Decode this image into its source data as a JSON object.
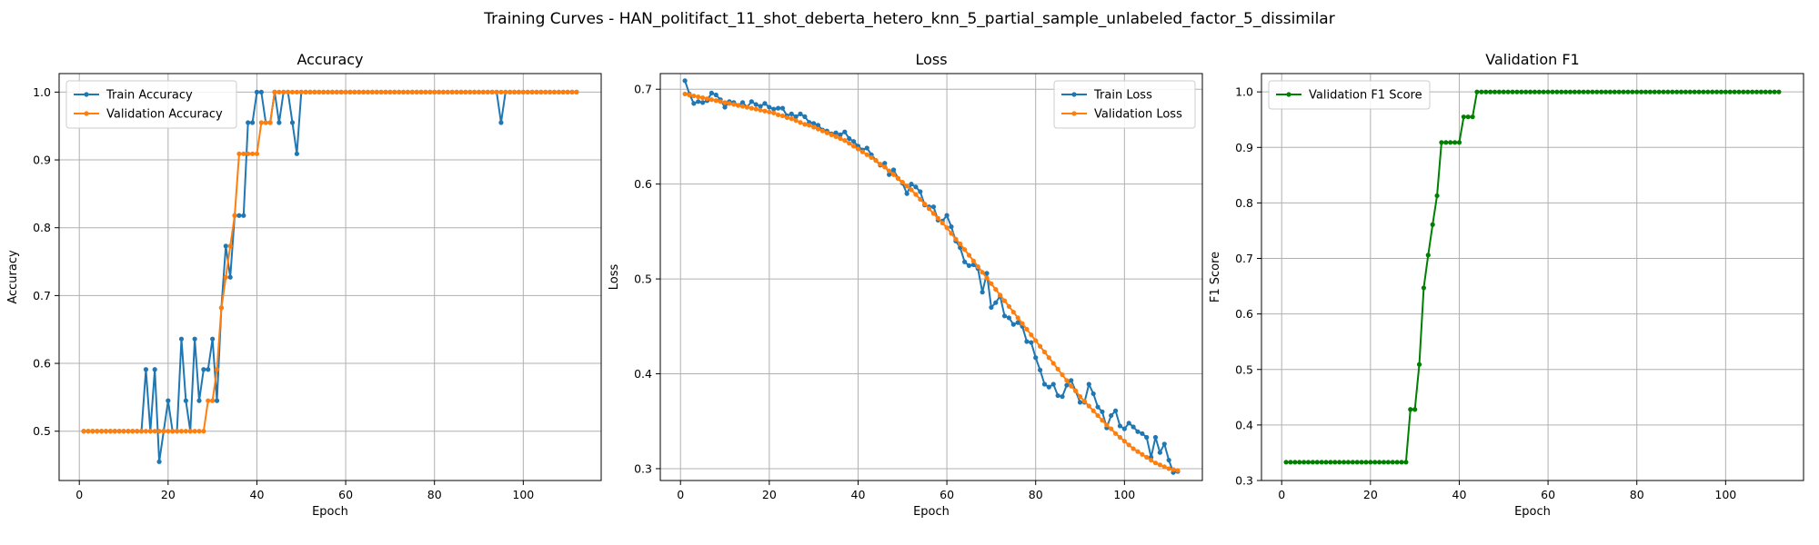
{
  "figure": {
    "title": "Training Curves - HAN_politifact_11_shot_deberta_hetero_knn_5_partial_sample_unlabeled_factor_5_dissimilar"
  },
  "colors": {
    "train": "#1f77b4",
    "validation": "#ff7f0e",
    "f1": "#008000",
    "grid": "#b0b0b0"
  },
  "chart_data": [
    {
      "type": "line",
      "title": "Accuracy",
      "xlabel": "Epoch",
      "ylabel": "Accuracy",
      "xlim": [
        -4.55,
        117.55
      ],
      "ylim": [
        0.4273,
        1.0273
      ],
      "xticks": [
        0,
        20,
        40,
        60,
        80,
        100
      ],
      "yticks": [
        0.5,
        0.6,
        0.7,
        0.8,
        0.9,
        1.0
      ],
      "ytick_labels": [
        "0.5",
        "0.6",
        "0.7",
        "0.8",
        "0.9",
        "1.0"
      ],
      "grid": true,
      "legend": "upper left",
      "series": [
        {
          "name": "Train Accuracy",
          "color": "#1f77b4",
          "y": [
            0.5,
            0.5,
            0.5,
            0.5,
            0.5,
            0.5,
            0.5,
            0.5,
            0.5,
            0.5,
            0.5,
            0.5,
            0.5,
            0.5,
            0.591,
            0.5,
            0.591,
            0.455,
            0.5,
            0.545,
            0.5,
            0.5,
            0.636,
            0.545,
            0.5,
            0.636,
            0.545,
            0.591,
            0.591,
            0.636,
            0.545,
            0.682,
            0.773,
            0.727,
            0.818,
            0.818,
            0.818,
            0.955,
            0.955,
            1.0,
            1.0,
            0.955,
            0.955,
            1.0,
            0.955,
            1.0,
            1.0,
            0.955,
            0.909,
            1.0,
            1.0,
            1.0,
            1.0,
            1.0,
            1.0,
            1.0,
            1.0,
            1.0,
            1.0,
            1.0,
            1.0,
            1.0,
            1.0,
            1.0,
            1.0,
            1.0,
            1.0,
            1.0,
            1.0,
            1.0,
            1.0,
            1.0,
            1.0,
            1.0,
            1.0,
            1.0,
            1.0,
            1.0,
            1.0,
            1.0,
            1.0,
            1.0,
            1.0,
            1.0,
            1.0,
            1.0,
            1.0,
            1.0,
            1.0,
            1.0,
            1.0,
            1.0,
            1.0,
            1.0,
            0.955,
            1.0,
            1.0,
            1.0,
            1.0,
            1.0,
            1.0,
            1.0,
            1.0,
            1.0,
            1.0,
            1.0,
            1.0,
            1.0,
            1.0,
            1.0,
            1.0,
            1.0
          ]
        },
        {
          "name": "Validation Accuracy",
          "color": "#ff7f0e",
          "y": [
            0.5,
            0.5,
            0.5,
            0.5,
            0.5,
            0.5,
            0.5,
            0.5,
            0.5,
            0.5,
            0.5,
            0.5,
            0.5,
            0.5,
            0.5,
            0.5,
            0.5,
            0.5,
            0.5,
            0.5,
            0.5,
            0.5,
            0.5,
            0.5,
            0.5,
            0.5,
            0.5,
            0.5,
            0.545,
            0.545,
            0.591,
            0.682,
            0.727,
            0.773,
            0.818,
            0.909,
            0.909,
            0.909,
            0.909,
            0.909,
            0.955,
            0.955,
            0.955,
            1.0,
            1.0,
            1.0,
            1.0,
            1.0,
            1.0,
            1.0,
            1.0,
            1.0,
            1.0,
            1.0,
            1.0,
            1.0,
            1.0,
            1.0,
            1.0,
            1.0,
            1.0,
            1.0,
            1.0,
            1.0,
            1.0,
            1.0,
            1.0,
            1.0,
            1.0,
            1.0,
            1.0,
            1.0,
            1.0,
            1.0,
            1.0,
            1.0,
            1.0,
            1.0,
            1.0,
            1.0,
            1.0,
            1.0,
            1.0,
            1.0,
            1.0,
            1.0,
            1.0,
            1.0,
            1.0,
            1.0,
            1.0,
            1.0,
            1.0,
            1.0,
            1.0,
            1.0,
            1.0,
            1.0,
            1.0,
            1.0,
            1.0,
            1.0,
            1.0,
            1.0,
            1.0,
            1.0,
            1.0,
            1.0,
            1.0,
            1.0,
            1.0,
            1.0
          ]
        }
      ]
    },
    {
      "type": "line",
      "title": "Loss",
      "xlabel": "Epoch",
      "ylabel": "Loss",
      "xlim": [
        -4.55,
        117.55
      ],
      "ylim": [
        0.2875,
        0.7165
      ],
      "xticks": [
        0,
        20,
        40,
        60,
        80,
        100
      ],
      "yticks": [
        0.3,
        0.4,
        0.5,
        0.6,
        0.7
      ],
      "ytick_labels": [
        "0.3",
        "0.4",
        "0.5",
        "0.6",
        "0.7"
      ],
      "grid": true,
      "legend": "upper right",
      "series": [
        {
          "name": "Train Loss",
          "color": "#1f77b4",
          "y": [
            0.709,
            0.695,
            0.685,
            0.687,
            0.686,
            0.688,
            0.696,
            0.694,
            0.689,
            0.681,
            0.687,
            0.686,
            0.683,
            0.686,
            0.681,
            0.687,
            0.684,
            0.682,
            0.685,
            0.681,
            0.679,
            0.68,
            0.68,
            0.672,
            0.674,
            0.671,
            0.674,
            0.671,
            0.665,
            0.664,
            0.662,
            0.657,
            0.656,
            0.653,
            0.654,
            0.652,
            0.655,
            0.648,
            0.645,
            0.64,
            0.636,
            0.638,
            0.631,
            0.625,
            0.62,
            0.622,
            0.61,
            0.615,
            0.606,
            0.601,
            0.59,
            0.6,
            0.597,
            0.592,
            0.578,
            0.576,
            0.576,
            0.562,
            0.561,
            0.567,
            0.555,
            0.54,
            0.533,
            0.518,
            0.514,
            0.515,
            0.511,
            0.486,
            0.506,
            0.47,
            0.475,
            0.482,
            0.461,
            0.459,
            0.452,
            0.454,
            0.45,
            0.434,
            0.433,
            0.417,
            0.404,
            0.389,
            0.386,
            0.389,
            0.377,
            0.376,
            0.388,
            0.393,
            0.382,
            0.37,
            0.37,
            0.389,
            0.379,
            0.365,
            0.36,
            0.343,
            0.356,
            0.361,
            0.345,
            0.342,
            0.348,
            0.344,
            0.339,
            0.337,
            0.333,
            0.312,
            0.333,
            0.317,
            0.326,
            0.309,
            0.296,
            0.297
          ]
        },
        {
          "name": "Validation Loss",
          "color": "#ff7f0e",
          "y": [
            0.695,
            0.694,
            0.693,
            0.692,
            0.691,
            0.69,
            0.689,
            0.688,
            0.687,
            0.686,
            0.685,
            0.684,
            0.683,
            0.682,
            0.681,
            0.68,
            0.679,
            0.678,
            0.677,
            0.676,
            0.675,
            0.673,
            0.672,
            0.67,
            0.669,
            0.667,
            0.665,
            0.663,
            0.662,
            0.66,
            0.658,
            0.656,
            0.654,
            0.652,
            0.65,
            0.648,
            0.646,
            0.643,
            0.64,
            0.637,
            0.634,
            0.631,
            0.628,
            0.625,
            0.621,
            0.618,
            0.614,
            0.61,
            0.606,
            0.602,
            0.598,
            0.594,
            0.589,
            0.584,
            0.579,
            0.574,
            0.569,
            0.564,
            0.559,
            0.554,
            0.548,
            0.542,
            0.537,
            0.531,
            0.525,
            0.519,
            0.513,
            0.507,
            0.501,
            0.495,
            0.489,
            0.483,
            0.477,
            0.471,
            0.465,
            0.459,
            0.453,
            0.447,
            0.441,
            0.435,
            0.429,
            0.423,
            0.417,
            0.411,
            0.405,
            0.399,
            0.393,
            0.387,
            0.382,
            0.376,
            0.371,
            0.366,
            0.361,
            0.356,
            0.351,
            0.346,
            0.342,
            0.337,
            0.333,
            0.329,
            0.325,
            0.321,
            0.318,
            0.315,
            0.312,
            0.309,
            0.306,
            0.304,
            0.302,
            0.3,
            0.299,
            0.298
          ]
        }
      ]
    },
    {
      "type": "line",
      "title": "Validation F1",
      "xlabel": "Epoch",
      "ylabel": "F1 Score",
      "xlim": [
        -4.55,
        117.55
      ],
      "ylim": [
        0.3,
        1.033
      ],
      "xticks": [
        0,
        20,
        40,
        60,
        80,
        100
      ],
      "yticks": [
        0.3,
        0.4,
        0.5,
        0.6,
        0.7,
        0.8,
        0.9,
        1.0
      ],
      "ytick_labels": [
        "0.3",
        "0.4",
        "0.5",
        "0.6",
        "0.7",
        "0.8",
        "0.9",
        "1.0"
      ],
      "grid": true,
      "legend": "upper left",
      "series": [
        {
          "name": "Validation F1 Score",
          "color": "#008000",
          "y": [
            0.333,
            0.333,
            0.333,
            0.333,
            0.333,
            0.333,
            0.333,
            0.333,
            0.333,
            0.333,
            0.333,
            0.333,
            0.333,
            0.333,
            0.333,
            0.333,
            0.333,
            0.333,
            0.333,
            0.333,
            0.333,
            0.333,
            0.333,
            0.333,
            0.333,
            0.333,
            0.333,
            0.333,
            0.428,
            0.428,
            0.509,
            0.647,
            0.706,
            0.761,
            0.813,
            0.909,
            0.909,
            0.909,
            0.909,
            0.909,
            0.955,
            0.955,
            0.955,
            1.0,
            1.0,
            1.0,
            1.0,
            1.0,
            1.0,
            1.0,
            1.0,
            1.0,
            1.0,
            1.0,
            1.0,
            1.0,
            1.0,
            1.0,
            1.0,
            1.0,
            1.0,
            1.0,
            1.0,
            1.0,
            1.0,
            1.0,
            1.0,
            1.0,
            1.0,
            1.0,
            1.0,
            1.0,
            1.0,
            1.0,
            1.0,
            1.0,
            1.0,
            1.0,
            1.0,
            1.0,
            1.0,
            1.0,
            1.0,
            1.0,
            1.0,
            1.0,
            1.0,
            1.0,
            1.0,
            1.0,
            1.0,
            1.0,
            1.0,
            1.0,
            1.0,
            1.0,
            1.0,
            1.0,
            1.0,
            1.0,
            1.0,
            1.0,
            1.0,
            1.0,
            1.0,
            1.0,
            1.0,
            1.0,
            1.0,
            1.0,
            1.0,
            1.0
          ]
        }
      ]
    }
  ]
}
